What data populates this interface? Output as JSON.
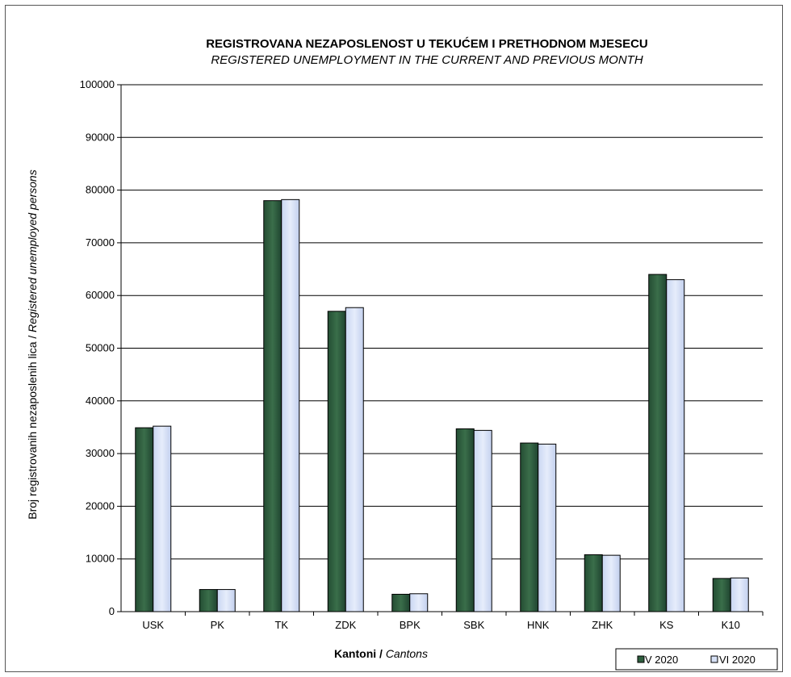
{
  "chart_data": {
    "type": "bar",
    "title": "REGISTROVANA NEZAPOSLENOST U TEKUĆEM I PRETHODNOM   MJESECU",
    "subtitle": "REGISTERED UNEMPLOYMENT IN THE CURRENT AND PREVIOUS MONTH",
    "xlabel_main": "Kantoni /",
    "xlabel_italic": "Cantons",
    "ylabel_main": "Broj registrovanih nezaposlenih lica /",
    "ylabel_italic": "Registered unemployed persons",
    "ylim": [
      0,
      100000
    ],
    "yticks": [
      0,
      10000,
      20000,
      30000,
      40000,
      50000,
      60000,
      70000,
      80000,
      90000,
      100000
    ],
    "categories": [
      "USK",
      "PK",
      "TK",
      "ZDK",
      "BPK",
      "SBK",
      "HNK",
      "ZHK",
      "KS",
      "K10"
    ],
    "series": [
      {
        "name": "V 2020",
        "color": "#2e5e3e",
        "values": [
          34900,
          4200,
          78000,
          57000,
          3300,
          34700,
          32000,
          10800,
          64000,
          6300
        ]
      },
      {
        "name": "VI 2020",
        "color": "#d6e0f5",
        "values": [
          35200,
          4200,
          78200,
          57700,
          3400,
          34400,
          31800,
          10700,
          63000,
          6400
        ]
      }
    ],
    "grid": true,
    "legend_position": "bottom-right"
  }
}
